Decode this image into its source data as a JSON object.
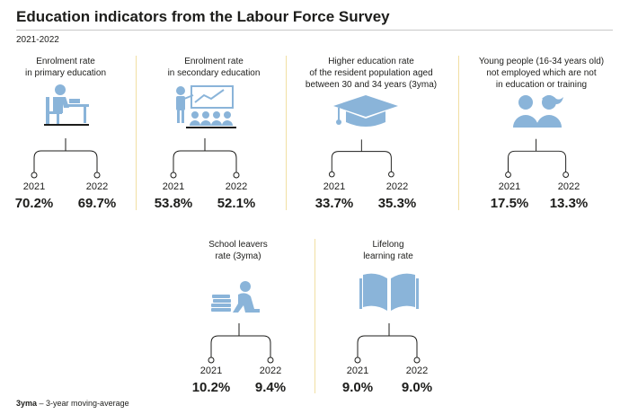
{
  "title": "Education indicators from the Labour Force Survey",
  "period": "2021-2022",
  "accent_color": "#8ab4d9",
  "indicators": [
    {
      "label": "Enrolment rate\nin primary education",
      "icon": "pupil-at-desk-icon",
      "year_a": "2021",
      "value_a": "70.2%",
      "year_b": "2022",
      "value_b": "69.7%"
    },
    {
      "label": "Enrolment rate\nin secondary education",
      "icon": "classroom-presentation-icon",
      "year_a": "2021",
      "value_a": "53.8%",
      "year_b": "2022",
      "value_b": "52.1%"
    },
    {
      "label": "Higher education rate\nof the resident population aged\nbetween 30 and 34 years (3yma)",
      "icon": "graduation-cap-icon",
      "year_a": "2021",
      "value_a": "33.7%",
      "year_b": "2022",
      "value_b": "35.3%"
    },
    {
      "label": "Young people (16-34 years old)\nnot employed which are not\nin education or training",
      "icon": "young-people-icon",
      "year_a": "2021",
      "value_a": "17.5%",
      "year_b": "2022",
      "value_b": "13.3%"
    },
    {
      "label": "School leavers\nrate (3yma)",
      "icon": "sitting-person-books-icon",
      "year_a": "2021",
      "value_a": "10.2%",
      "year_b": "2022",
      "value_b": "9.4%"
    },
    {
      "label": "Lifelong\nlearning rate",
      "icon": "open-book-icon",
      "year_a": "2021",
      "value_a": "9.0%",
      "year_b": "2022",
      "value_b": "9.0%"
    }
  ],
  "footnote": {
    "abbr": "3yma",
    "text": " – 3-year moving-average"
  }
}
